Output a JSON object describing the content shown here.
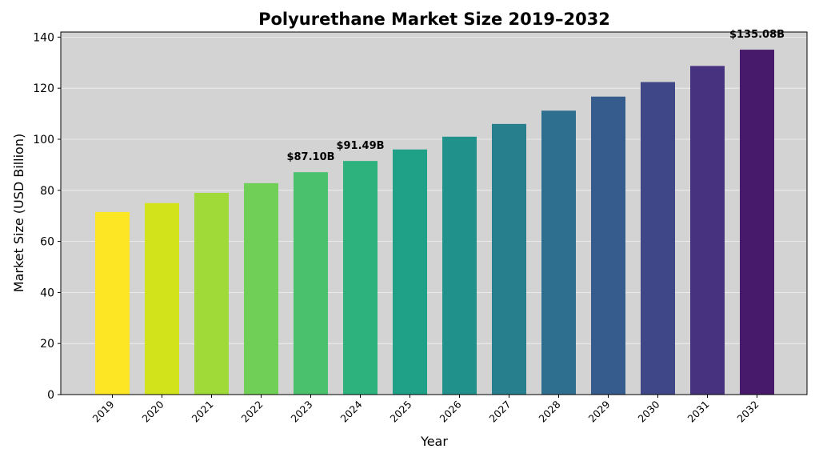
{
  "chart_data": {
    "type": "bar",
    "title": "Polyurethane Market Size 2019–2032",
    "xlabel": "Year",
    "ylabel": "Market Size (USD Billion)",
    "categories": [
      "2019",
      "2020",
      "2021",
      "2022",
      "2023",
      "2024",
      "2025",
      "2026",
      "2027",
      "2028",
      "2029",
      "2030",
      "2031",
      "2032"
    ],
    "values": [
      71.5,
      75.0,
      79.0,
      82.8,
      87.1,
      91.49,
      96.0,
      101.0,
      106.0,
      111.2,
      116.7,
      122.4,
      128.7,
      135.08
    ],
    "ylim": [
      0,
      142
    ],
    "yticks": [
      0,
      20,
      40,
      60,
      80,
      100,
      120,
      140
    ],
    "grid": true,
    "legend": "none",
    "background": "#d3d3d3",
    "bar_colors": [
      "#fde725",
      "#d2e21b",
      "#a0da39",
      "#70cf57",
      "#4ac16d",
      "#2db27d",
      "#1fa187",
      "#21918c",
      "#277f8e",
      "#2e6e8e",
      "#365c8d",
      "#3f4788",
      "#46327e",
      "#481a6c"
    ],
    "data_labels": [
      {
        "category": "2023",
        "text": "$87.10B"
      },
      {
        "category": "2024",
        "text": "$91.49B"
      },
      {
        "category": "2032",
        "text": "$135.08B"
      }
    ]
  }
}
